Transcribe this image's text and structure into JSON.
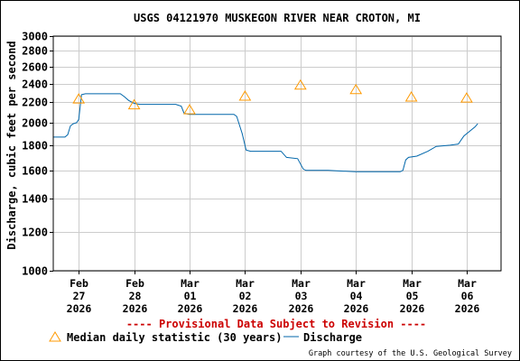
{
  "chart_data": {
    "type": "line",
    "title": "USGS 04121970 MUSKEGON RIVER NEAR CROTON, MI",
    "ylabel": "Discharge, cubic feet per second",
    "xlabel": "",
    "y_scale": "log",
    "ylim": [
      1000,
      3000
    ],
    "y_ticks": [
      1000,
      1200,
      1400,
      1600,
      1800,
      2000,
      2200,
      2400,
      2600,
      2800,
      3000
    ],
    "y_tick_labels": [
      "1000",
      "1200",
      "1400",
      "1600",
      "1800",
      "2000",
      "2200",
      "2400",
      "2600",
      "2800",
      "3000"
    ],
    "x_ticks": [
      {
        "label": "Feb 27 2026",
        "day": 0
      },
      {
        "label": "Feb 28 2026",
        "day": 1
      },
      {
        "label": "Mar 01 2026",
        "day": 2
      },
      {
        "label": "Mar 02 2026",
        "day": 3
      },
      {
        "label": "Mar 03 2026",
        "day": 4
      },
      {
        "label": "Mar 04 2026",
        "day": 5
      },
      {
        "label": "Mar 05 2026",
        "day": 6
      },
      {
        "label": "Mar 06 2026",
        "day": 7
      }
    ],
    "xlim_days": [
      -0.46,
      7.62
    ],
    "grid": true,
    "provisional_note": "---- Provisional Data Subject to Revision ----",
    "credit": "Graph courtesy of the U.S. Geological Survey",
    "series": [
      {
        "name": "Discharge",
        "kind": "line",
        "color": "#0066aa",
        "points": [
          [
            -0.46,
            1870
          ],
          [
            -0.25,
            1870
          ],
          [
            -0.2,
            1890
          ],
          [
            -0.15,
            1970
          ],
          [
            -0.1,
            1990
          ],
          [
            -0.04,
            2000
          ],
          [
            0.0,
            2030
          ],
          [
            0.05,
            2280
          ],
          [
            0.12,
            2290
          ],
          [
            0.3,
            2290
          ],
          [
            0.75,
            2290
          ],
          [
            0.82,
            2260
          ],
          [
            0.9,
            2220
          ],
          [
            1.0,
            2190
          ],
          [
            1.1,
            2180
          ],
          [
            1.5,
            2180
          ],
          [
            1.75,
            2180
          ],
          [
            1.85,
            2160
          ],
          [
            1.9,
            2090
          ],
          [
            2.0,
            2080
          ],
          [
            2.4,
            2080
          ],
          [
            2.8,
            2080
          ],
          [
            2.85,
            2060
          ],
          [
            2.95,
            1900
          ],
          [
            3.02,
            1760
          ],
          [
            3.1,
            1750
          ],
          [
            3.4,
            1750
          ],
          [
            3.65,
            1750
          ],
          [
            3.75,
            1700
          ],
          [
            3.95,
            1690
          ],
          [
            4.05,
            1610
          ],
          [
            4.1,
            1600
          ],
          [
            4.5,
            1600
          ],
          [
            5.0,
            1590
          ],
          [
            5.5,
            1590
          ],
          [
            5.8,
            1590
          ],
          [
            5.85,
            1600
          ],
          [
            5.9,
            1680
          ],
          [
            5.95,
            1700
          ],
          [
            6.1,
            1710
          ],
          [
            6.3,
            1750
          ],
          [
            6.45,
            1790
          ],
          [
            6.7,
            1800
          ],
          [
            6.85,
            1810
          ],
          [
            6.95,
            1880
          ],
          [
            7.05,
            1920
          ],
          [
            7.15,
            1960
          ],
          [
            7.2,
            1990
          ]
        ]
      },
      {
        "name": "Median daily statistic (30 years)",
        "kind": "marker",
        "marker": "triangle",
        "color": "#ff9900",
        "points": [
          [
            0.0,
            2240
          ],
          [
            1.0,
            2180
          ],
          [
            2.0,
            2130
          ],
          [
            3.0,
            2270
          ],
          [
            4.0,
            2390
          ],
          [
            5.0,
            2340
          ],
          [
            6.0,
            2260
          ],
          [
            7.0,
            2250
          ]
        ]
      }
    ],
    "legend": {
      "placement": "bottom",
      "entries": [
        {
          "label": "Median daily statistic (30 years)",
          "symbol": "triangle",
          "color": "#ff9900"
        },
        {
          "label": "Discharge",
          "symbol": "line",
          "color": "#0066aa"
        }
      ]
    },
    "colors": {
      "grid": "#cccccc",
      "axis": "#000000",
      "provisional": "#cc0000",
      "discharge": "#0066aa",
      "median": "#ff9900"
    }
  }
}
